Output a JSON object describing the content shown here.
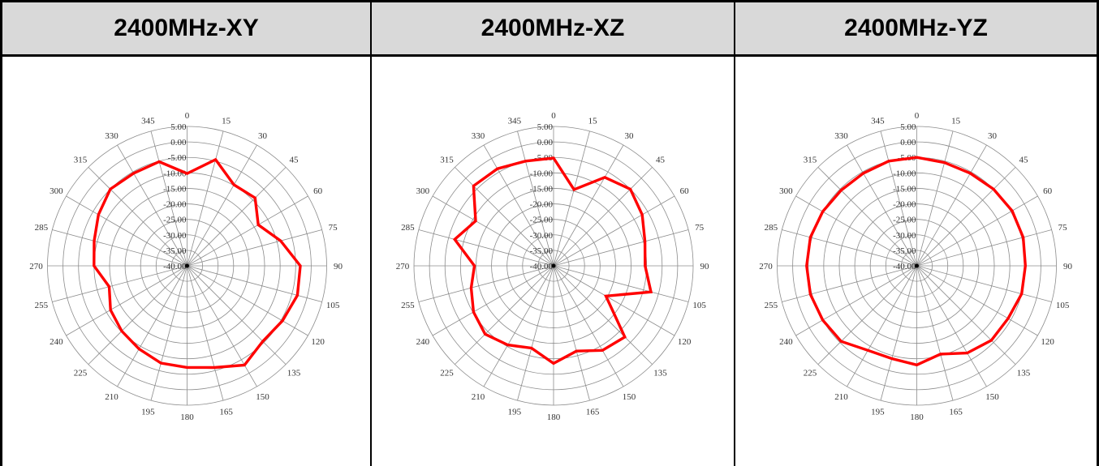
{
  "table": {
    "headers": [
      "2400MHz-XY",
      "2400MHz-XZ",
      "2400MHz-YZ"
    ]
  },
  "chart_data": [
    {
      "type": "polar",
      "title": "2400MHz-XY",
      "r_ticks": [
        "5.00",
        "0.00",
        "-5.00",
        "-10.00",
        "-15.00",
        "-20.00",
        "-25.00",
        "-30.00",
        "-35.00",
        "-40.00"
      ],
      "r_range": [
        -40,
        5
      ],
      "angle_ticks": [
        "0",
        "15",
        "30",
        "45",
        "60",
        "75",
        "90",
        "105",
        "120",
        "135",
        "150",
        "165",
        "180",
        "195",
        "210",
        "225",
        "240",
        "255",
        "270",
        "285",
        "300",
        "315",
        "330",
        "345"
      ],
      "series": [
        {
          "color": "#ff0000",
          "angles": [
            0,
            15,
            30,
            45,
            60,
            75,
            90,
            105,
            120,
            135,
            150,
            165,
            180,
            195,
            210,
            225,
            240,
            255,
            270,
            285,
            300,
            315,
            330,
            345
          ],
          "values": [
            -10.2,
            -4.5,
            -9.8,
            -9.0,
            -13.5,
            -8.8,
            -3.5,
            -3.2,
            -4.5,
            -5.5,
            -3.0,
            -6.0,
            -7.2,
            -7.5,
            -9.0,
            -10.2,
            -11.5,
            -14.0,
            -10.0,
            -9.0,
            -7.0,
            -5.0,
            -5.5,
            -5.2
          ]
        }
      ],
      "line_color": "#ff0000"
    },
    {
      "type": "polar",
      "title": "2400MHz-XZ",
      "r_ticks": [
        "5.00",
        "0.00",
        "-5.00",
        "-10.00",
        "-15.00",
        "-20.00",
        "-25.00",
        "-30.00",
        "-35.00",
        "-40.00"
      ],
      "r_range": [
        -40,
        5
      ],
      "angle_ticks": [
        "0",
        "15",
        "30",
        "45",
        "60",
        "75",
        "90",
        "105",
        "120",
        "135",
        "150",
        "165",
        "180",
        "195",
        "210",
        "225",
        "240",
        "255",
        "270",
        "285",
        "300",
        "315",
        "330",
        "345"
      ],
      "series": [
        {
          "color": "#ff0000",
          "angles": [
            0,
            15,
            30,
            45,
            60,
            75,
            90,
            105,
            120,
            135,
            150,
            165,
            180,
            195,
            210,
            225,
            240,
            255,
            270,
            285,
            300,
            315,
            330,
            345
          ],
          "values": [
            -5.2,
            -14.5,
            -7.0,
            -5.0,
            -7.0,
            -9.5,
            -10.5,
            -7.5,
            -20.5,
            -7.5,
            -8.5,
            -11.5,
            -8.5,
            -12.5,
            -10.5,
            -8.8,
            -10.2,
            -12.5,
            -14.5,
            -7.0,
            -11.0,
            -3.5,
            -3.8,
            -5.0
          ]
        }
      ],
      "line_color": "#ff0000"
    },
    {
      "type": "polar",
      "title": "2400MHz-YZ",
      "r_ticks": [
        "5.00",
        "0.00",
        "-5.00",
        "-10.00",
        "-15.00",
        "-20.00",
        "-25.00",
        "-30.00",
        "-35.00",
        "-40.00"
      ],
      "r_range": [
        -40,
        5
      ],
      "angle_ticks": [
        "0",
        "15",
        "30",
        "45",
        "60",
        "75",
        "90",
        "105",
        "120",
        "135",
        "150",
        "165",
        "180",
        "195",
        "210",
        "225",
        "240",
        "255",
        "270",
        "285",
        "300",
        "315",
        "330",
        "345"
      ],
      "series": [
        {
          "color": "#ff0000",
          "angles": [
            0,
            15,
            30,
            45,
            60,
            75,
            90,
            105,
            120,
            135,
            150,
            165,
            180,
            195,
            210,
            225,
            240,
            255,
            270,
            285,
            300,
            315,
            330,
            345
          ],
          "values": [
            -5.0,
            -5.5,
            -5.5,
            -5.0,
            -4.5,
            -4.5,
            -5.0,
            -5.0,
            -6.0,
            -6.0,
            -7.5,
            -10.5,
            -8.0,
            -9.0,
            -8.5,
            -5.5,
            -5.0,
            -4.5,
            -4.5,
            -4.5,
            -5.0,
            -5.5,
            -5.5,
            -5.0
          ]
        }
      ],
      "line_color": "#ff0000"
    }
  ]
}
